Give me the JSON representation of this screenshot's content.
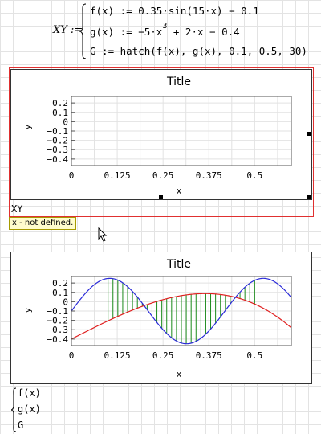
{
  "definition": {
    "name": "XY :=",
    "lines": [
      {
        "text": "f(x) := 0.35·sin(15·x) − 0.1"
      },
      {
        "pre": "g(x) := −5·x",
        "sup": "3",
        "post": " + 2·x − 0.4"
      },
      {
        "text": "G := hatch(f(x), g(x), 0.1, 0.5, 30)"
      }
    ]
  },
  "plot1": {
    "title": "Title",
    "expression": "XY",
    "error": "x - not defined."
  },
  "plot2": {
    "title": "Title"
  },
  "axes": {
    "xlabel": "x",
    "ylabel": "y",
    "xticks": [
      "0",
      "0.125",
      "0.25",
      "0.375",
      "0.5"
    ],
    "yticks": [
      "0.2",
      "0.1",
      "0",
      "−0.1",
      "−0.2",
      "−0.3",
      "−0.4"
    ]
  },
  "chart_data": [
    {
      "type": "line",
      "title": "Title",
      "xlabel": "x",
      "ylabel": "y",
      "xlim": [
        0,
        0.6
      ],
      "ylim": [
        -0.47,
        0.27
      ],
      "series": []
    },
    {
      "type": "line",
      "title": "Title",
      "xlabel": "x",
      "ylabel": "y",
      "xlim": [
        0,
        0.6
      ],
      "ylim": [
        -0.47,
        0.27
      ],
      "grid": true,
      "series": [
        {
          "function": "0.35*sin(15*x)-0.1",
          "color": "#2a2ad8"
        },
        {
          "function": "-5*x^3+2*x-0.4",
          "color": "#e02020"
        }
      ],
      "hatch": {
        "from": 0.1,
        "to": 0.5,
        "count": 30,
        "color": "#1a8a1a"
      }
    }
  ],
  "bottom_list": [
    "f(x)",
    "g(x)",
    "G"
  ]
}
